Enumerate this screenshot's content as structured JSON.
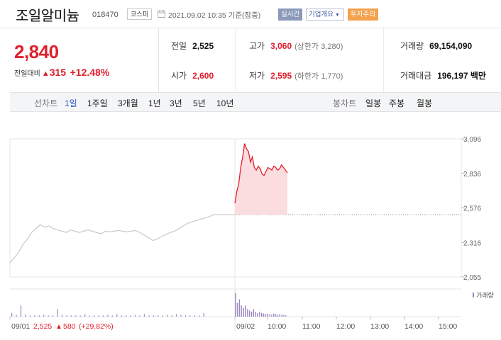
{
  "header": {
    "stock_name": "조일알미늄",
    "stock_code": "018470",
    "market": "코스피",
    "timestamp": "2021.09.02 10:35 기준(장중)",
    "realtime_label": "실시간",
    "company_select": "기업개요",
    "warning_label": "투자주의"
  },
  "price": {
    "current": "2,840",
    "change_label": "전일대비",
    "change_amount": "315",
    "change_rate": "+12.48%"
  },
  "stats": {
    "prev_close_label": "전일",
    "prev_close": "2,525",
    "high_label": "고가",
    "high": "3,060",
    "high_limit": "(상한가 3,280)",
    "volume_label": "거래량",
    "volume": "69,154,090",
    "open_label": "시가",
    "open": "2,600",
    "low_label": "저가",
    "low": "2,595",
    "low_limit": "(하한가 1,770)",
    "value_label": "거래대금",
    "value": "196,197 백만"
  },
  "period_bar": {
    "line_label": "선차트",
    "periods": [
      "1일",
      "1주일",
      "3개월",
      "1년",
      "3년",
      "5년",
      "10년"
    ],
    "active": "1일",
    "candle_label": "봉차트",
    "candles": [
      "일봉",
      "주봉",
      "월봉"
    ]
  },
  "colors": {
    "up": "#e0202d",
    "down": "#2959c5",
    "prev_line": "#c9c9c9",
    "volume": "#9a87c0"
  },
  "chart_data": {
    "type": "line",
    "ylim": [
      2055,
      3096
    ],
    "y_ticks": [
      "3,096",
      "2,836",
      "2,576",
      "2,316",
      "2,055"
    ],
    "x_ticks": [
      "09/01",
      "09/02",
      "10:00",
      "11:00",
      "12:00",
      "13:00",
      "14:00",
      "15:00"
    ],
    "reference_price": 2525,
    "volume_label": "거래량",
    "footer": {
      "date": "09/01",
      "close": "2,525",
      "change": "580",
      "rate": "(+29.82%)"
    },
    "series": [
      {
        "values": [
          2160,
          2200,
          2240,
          2300,
          2340,
          2390,
          2420,
          2450,
          2430,
          2440,
          2420,
          2410,
          2400,
          2390,
          2410,
          2400,
          2390,
          2400,
          2410,
          2400,
          2390,
          2380,
          2400,
          2395,
          2400,
          2405,
          2400,
          2395,
          2400,
          2405,
          2390,
          2370,
          2350,
          2330,
          2340,
          2360,
          2375,
          2390,
          2400,
          2420,
          2440,
          2460,
          2470,
          2480,
          2490,
          2500,
          2510,
          2525
        ]
      },
      {
        "values": [
          2610,
          2700,
          2760,
          2880,
          2960,
          3060,
          3020,
          3000,
          2920,
          2960,
          2880,
          2860,
          2890,
          2870,
          2830,
          2820,
          2850,
          2880,
          2870,
          2860,
          2890,
          2880,
          2860,
          2870,
          2900,
          2880,
          2860,
          2840
        ]
      }
    ],
    "volume_day1": [
      6,
      3,
      18,
      4,
      2,
      2,
      2,
      3,
      2,
      2,
      12,
      3,
      2,
      2,
      2,
      2,
      4,
      2,
      2,
      2,
      2,
      3,
      2,
      4,
      2,
      2,
      2,
      3,
      2,
      4,
      2,
      2,
      2,
      2,
      3,
      2,
      4,
      3,
      2,
      2,
      2,
      2,
      6
    ],
    "volume_day2": [
      38,
      22,
      28,
      18,
      14,
      18,
      12,
      10,
      8,
      12,
      8,
      6,
      8,
      6,
      5,
      4,
      5,
      4,
      3,
      5,
      4,
      3,
      4,
      3,
      3,
      2
    ]
  }
}
